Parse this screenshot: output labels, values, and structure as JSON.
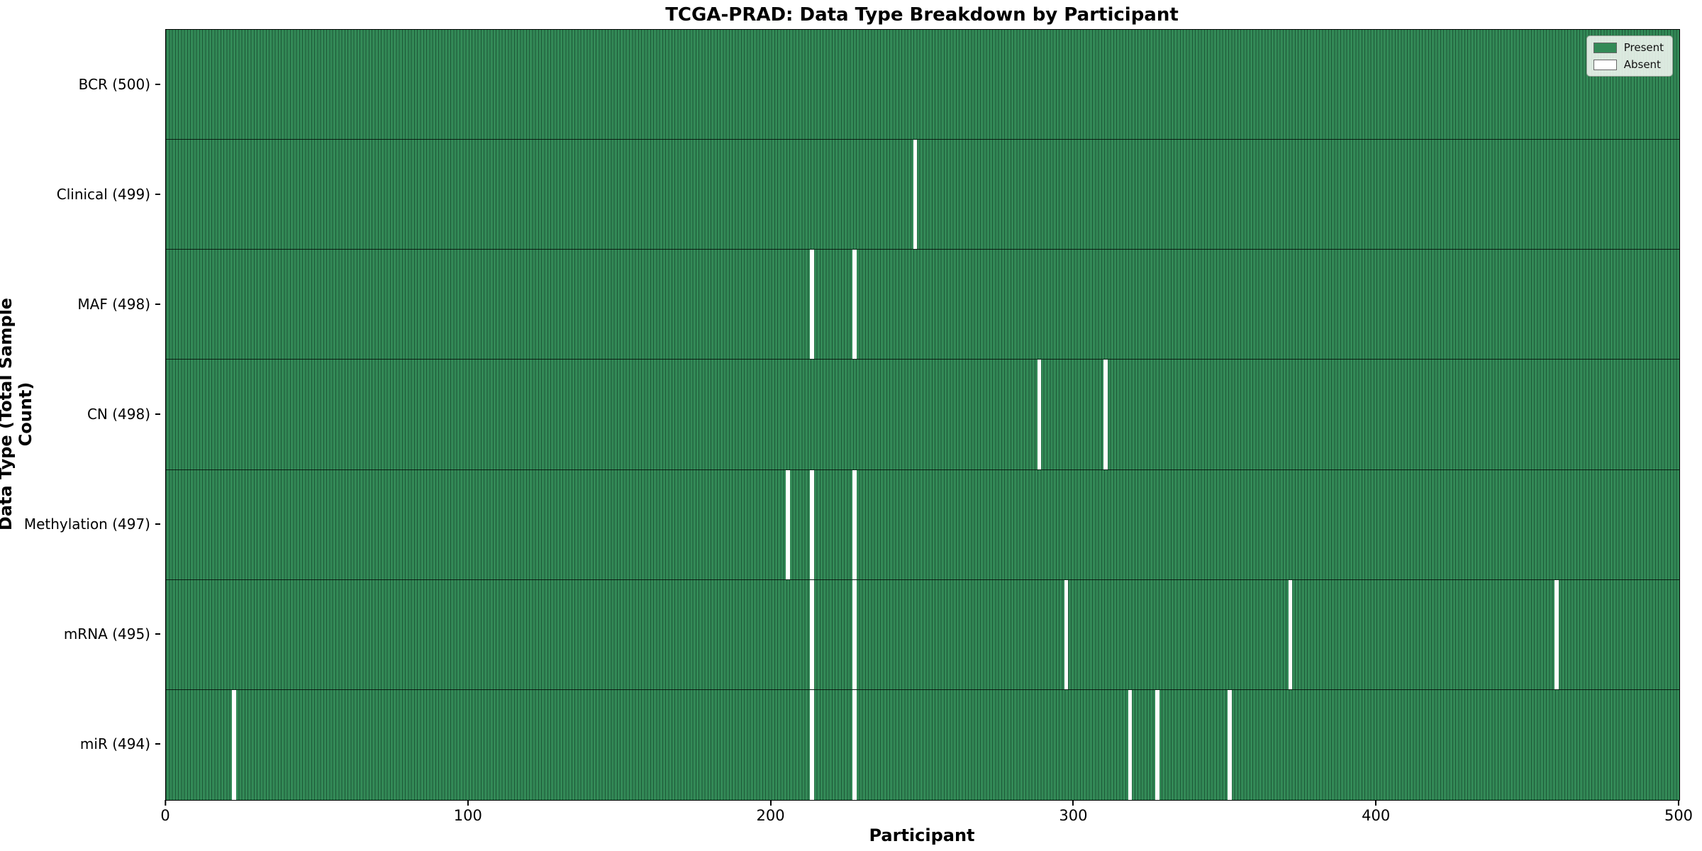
{
  "title": "TCGA-PRAD: Data Type Breakdown by Participant",
  "xlabel": "Participant",
  "ylabel": "Data Type (Total Sample Count)",
  "legend": {
    "present_label": "Present",
    "absent_label": "Absent"
  },
  "colors": {
    "present_fill": "#338a57",
    "present_edge": "#1d5737",
    "absent": "#ffffff",
    "background": "#ffffff"
  },
  "chart_data": {
    "type": "heatmap",
    "title": "TCGA-PRAD: Data Type Breakdown by Participant",
    "xlabel": "Participant",
    "ylabel": "Data Type (Total Sample Count)",
    "xlim": [
      0,
      500
    ],
    "x_ticks": [
      0,
      100,
      200,
      300,
      400,
      500
    ],
    "n_participants": 500,
    "legend_position": "upper right",
    "legend_entries": [
      "Present",
      "Absent"
    ],
    "rows": [
      {
        "label": "BCR (500)",
        "total": 500,
        "absent_participants": []
      },
      {
        "label": "Clinical (499)",
        "total": 499,
        "absent_participants": [
          247
        ]
      },
      {
        "label": "MAF (498)",
        "total": 498,
        "absent_participants": [
          213,
          227
        ]
      },
      {
        "label": "CN (498)",
        "total": 498,
        "absent_participants": [
          288,
          310
        ]
      },
      {
        "label": "Methylation (497)",
        "total": 497,
        "absent_participants": [
          205,
          213,
          227
        ]
      },
      {
        "label": "mRNA (495)",
        "total": 495,
        "absent_participants": [
          213,
          227,
          297,
          371,
          459
        ]
      },
      {
        "label": "miR (494)",
        "total": 494,
        "absent_participants": [
          22,
          213,
          227,
          318,
          327,
          351
        ]
      }
    ]
  }
}
